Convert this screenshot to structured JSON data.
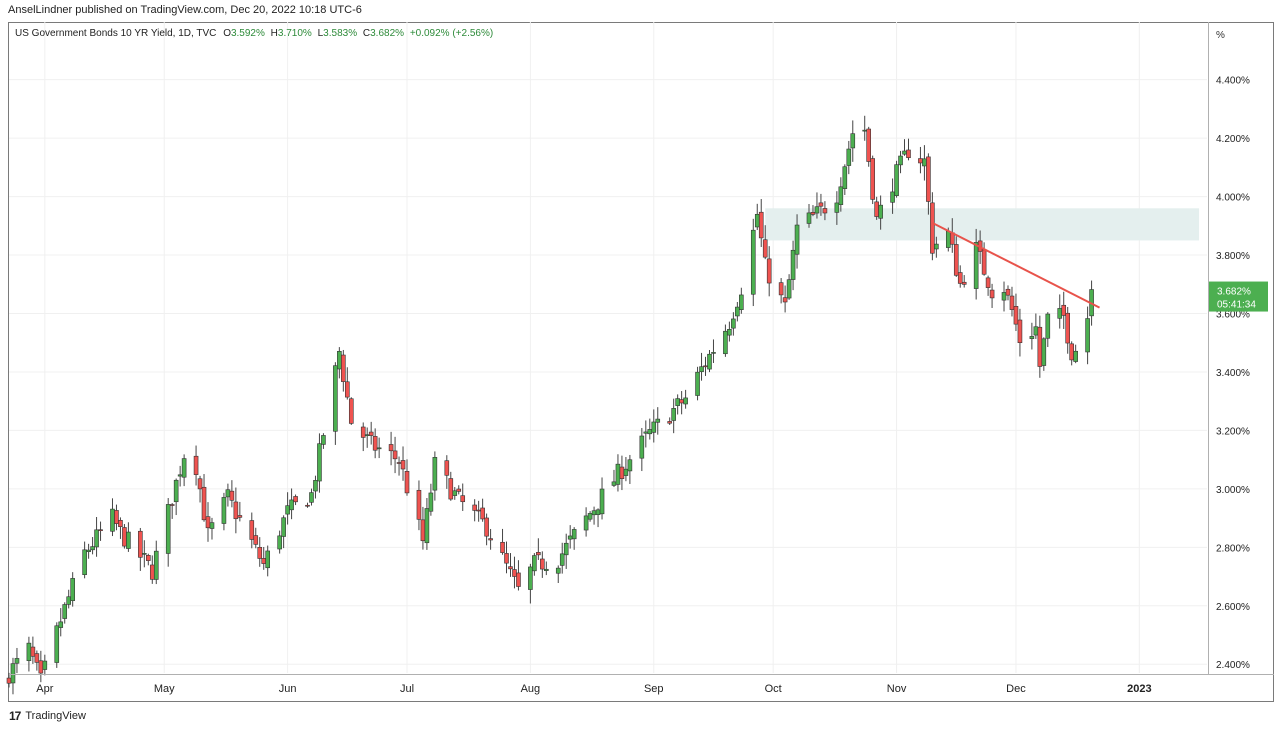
{
  "header": {
    "published": "AnselLindner published on TradingView.com, Dec 20, 2022 10:18 UTC-6"
  },
  "legend": {
    "symbol": "US Government Bonds 10 YR Yield, 1D, TVC",
    "o_label": "O",
    "o": "3.592%",
    "h_label": "H",
    "h": "3.710%",
    "l_label": "L",
    "l": "3.583%",
    "c_label": "C",
    "c": "3.682%",
    "change": "+0.092% (+2.56%)"
  },
  "footer": {
    "logo": "17",
    "brand": "TradingView"
  },
  "colors": {
    "up": "#4caf50",
    "down": "#ef5350",
    "line": "#e8534b",
    "zone": "#e4efee",
    "badge": "#4caf50"
  },
  "chart_data": {
    "type": "candlestick",
    "y_unit": "%",
    "ylim": [
      2.37,
      4.57
    ],
    "y_ticks": [
      "2.400%",
      "2.600%",
      "2.800%",
      "3.000%",
      "3.200%",
      "3.400%",
      "3.600%",
      "3.800%",
      "4.000%",
      "4.200%",
      "4.400%"
    ],
    "x_labels": [
      "Apr",
      "May",
      "Jun",
      "Jul",
      "Aug",
      "Sep",
      "Oct",
      "Nov",
      "Dec",
      "2023"
    ],
    "x_label_dates": [
      "2022-04-01",
      "2022-05-01",
      "2022-06-01",
      "2022-07-01",
      "2022-08-01",
      "2022-09-01",
      "2022-10-01",
      "2022-11-01",
      "2022-12-01",
      "2023-01-01"
    ],
    "x_range": [
      "2022-03-23",
      "2023-01-18"
    ],
    "last_price": {
      "value": 3.682,
      "label": "3.682%",
      "countdown": "05:41:34"
    },
    "zone": {
      "start": "2022-09-29",
      "end": "2023-01-16",
      "low": 3.85,
      "high": 3.96
    },
    "trendline": {
      "start": "2022-11-10",
      "y1": 3.91,
      "end": "2022-12-22",
      "y2": 3.62
    },
    "grid": true,
    "anchors": [
      [
        "2022-03-23",
        2.37
      ],
      [
        "2022-03-28",
        2.45
      ],
      [
        "2022-03-31",
        2.34
      ],
      [
        "2022-04-05",
        2.55
      ],
      [
        "2022-04-11",
        2.78
      ],
      [
        "2022-04-18",
        2.9
      ],
      [
        "2022-04-20",
        2.85
      ],
      [
        "2022-04-28",
        2.72
      ],
      [
        "2022-05-06",
        3.12
      ],
      [
        "2022-05-09",
        3.08
      ],
      [
        "2022-05-12",
        2.84
      ],
      [
        "2022-05-17",
        2.97
      ],
      [
        "2022-05-26",
        2.74
      ],
      [
        "2022-06-01",
        2.92
      ],
      [
        "2022-06-07",
        2.98
      ],
      [
        "2022-06-14",
        3.47
      ],
      [
        "2022-06-17",
        3.23
      ],
      [
        "2022-06-22",
        3.15
      ],
      [
        "2022-06-29",
        3.1
      ],
      [
        "2022-07-05",
        2.82
      ],
      [
        "2022-07-08",
        3.08
      ],
      [
        "2022-07-14",
        2.96
      ],
      [
        "2022-07-21",
        2.87
      ],
      [
        "2022-07-29",
        2.65
      ],
      [
        "2022-08-02",
        2.74
      ],
      [
        "2022-08-08",
        2.76
      ],
      [
        "2022-08-12",
        2.84
      ],
      [
        "2022-08-23",
        3.05
      ],
      [
        "2022-08-31",
        3.19
      ],
      [
        "2022-09-09",
        3.31
      ],
      [
        "2022-09-13",
        3.41
      ],
      [
        "2022-09-20",
        3.57
      ],
      [
        "2022-09-23",
        3.69
      ],
      [
        "2022-09-27",
        3.94
      ],
      [
        "2022-09-29",
        3.76
      ],
      [
        "2022-10-04",
        3.62
      ],
      [
        "2022-10-07",
        3.89
      ],
      [
        "2022-10-13",
        3.95
      ],
      [
        "2022-10-17",
        4.01
      ],
      [
        "2022-10-21",
        4.22
      ],
      [
        "2022-10-24",
        4.23
      ],
      [
        "2022-10-27",
        3.92
      ],
      [
        "2022-10-31",
        4.05
      ],
      [
        "2022-11-04",
        4.16
      ],
      [
        "2022-11-08",
        4.12
      ],
      [
        "2022-11-10",
        3.83
      ],
      [
        "2022-11-14",
        3.87
      ],
      [
        "2022-11-17",
        3.7
      ],
      [
        "2022-11-21",
        3.82
      ],
      [
        "2022-11-25",
        3.68
      ],
      [
        "2022-11-28",
        3.69
      ],
      [
        "2022-11-30",
        3.61
      ],
      [
        "2022-12-02",
        3.51
      ],
      [
        "2022-12-06",
        3.55
      ],
      [
        "2022-12-07",
        3.42
      ],
      [
        "2022-12-09",
        3.58
      ],
      [
        "2022-12-13",
        3.59
      ],
      [
        "2022-12-15",
        3.47
      ],
      [
        "2022-12-16",
        3.48
      ],
      [
        "2022-12-19",
        3.59
      ],
      [
        "2022-12-20",
        3.68
      ]
    ]
  }
}
